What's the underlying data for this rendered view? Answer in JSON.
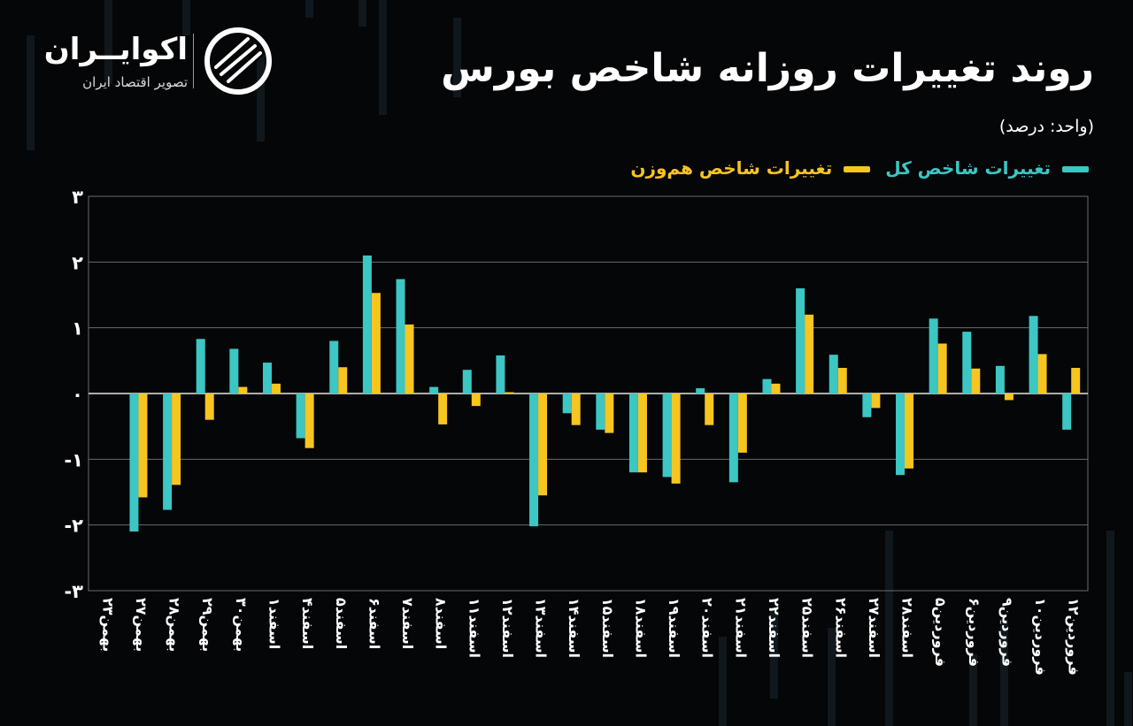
{
  "header": {
    "title": "روند تغییرات روزانه شاخص بورس",
    "unit": "(واحد: درصد)"
  },
  "brand": {
    "name": "اکوایــران",
    "tagline": "تصویر اقتصاد ایران"
  },
  "colors": {
    "background": "#050607",
    "teal": "#3cc6c4",
    "gold": "#f7c520",
    "grid": "#6b6b6b"
  },
  "chart_data": {
    "type": "bar",
    "title": "روند تغییرات روزانه شاخص بورس",
    "ylabel": "(واحد: درصد)",
    "ylim": [
      -3,
      3
    ],
    "yticks": [
      "۳",
      "۲",
      "۱",
      "۰",
      "-۱",
      "-۲",
      "-۳"
    ],
    "legend": "top-right",
    "grid": true,
    "categories": [
      "بهمن۲۳",
      "بهمن۲۷",
      "بهمن۲۸",
      "بهمن۲۹",
      "بهمن۳۰",
      "اسفند۱",
      "اسفند۴",
      "اسفند۵",
      "اسفند۶",
      "اسفند۷",
      "اسفند۸",
      "اسفند۱۱",
      "اسفند۱۲",
      "اسفند۱۳",
      "اسفند۱۴",
      "اسفند۱۵",
      "اسفند۱۸",
      "اسفند۱۹",
      "اسفند۲۰",
      "اسفند۲۱",
      "اسفند۲۲",
      "اسفند۲۵",
      "اسفند۲۶",
      "اسفند۲۷",
      "اسفند۲۸",
      "فروردین۵",
      "فروردین۶",
      "فروردین۹",
      "فروردین۱۰",
      "فروردین۱۲"
    ],
    "series": [
      {
        "name": "تغییرات شاخص کل",
        "color": "#3cc6c4",
        "values": [
          0,
          -2.1,
          -1.77,
          0.83,
          0.68,
          0.47,
          -0.68,
          0.8,
          2.1,
          1.74,
          0.1,
          0.36,
          0.58,
          -2.02,
          -0.3,
          -0.55,
          -1.2,
          -1.27,
          0.08,
          -1.35,
          0.22,
          1.6,
          0.59,
          -0.36,
          -1.24,
          1.14,
          0.94,
          0.42,
          1.18,
          -0.55
        ]
      },
      {
        "name": "تغییرات شاخص هم‌وزن",
        "color": "#f7c520",
        "values": [
          0,
          -1.58,
          -1.39,
          -0.4,
          0.1,
          0.15,
          -0.83,
          0.4,
          1.53,
          1.05,
          -0.47,
          -0.19,
          0.02,
          -1.55,
          -0.48,
          -0.6,
          -1.2,
          -1.37,
          -0.48,
          -0.9,
          0.15,
          1.2,
          0.39,
          -0.22,
          -1.14,
          0.76,
          0.38,
          -0.1,
          0.6,
          0.39
        ]
      }
    ]
  }
}
